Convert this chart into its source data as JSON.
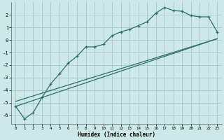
{
  "xlabel": "Humidex (Indice chaleur)",
  "bg_color": "#cce8e8",
  "grid_color": "#aacccc",
  "line_color": "#2e6e65",
  "xlim": [
    -0.5,
    23.5
  ],
  "ylim": [
    -6.7,
    3.0
  ],
  "yticks": [
    -6,
    -5,
    -4,
    -3,
    -2,
    -1,
    0,
    1,
    2
  ],
  "xticks": [
    0,
    1,
    2,
    3,
    4,
    5,
    6,
    7,
    8,
    9,
    10,
    11,
    12,
    13,
    14,
    15,
    16,
    17,
    18,
    19,
    20,
    21,
    22,
    23
  ],
  "line1_x": [
    0,
    1,
    2,
    3,
    4,
    5,
    6,
    7,
    8,
    9,
    10,
    11,
    12,
    13,
    14,
    15,
    16,
    17,
    18,
    19,
    20,
    21,
    22,
    23
  ],
  "line1_y": [
    -5.3,
    -6.3,
    -5.8,
    -4.6,
    -3.5,
    -2.7,
    -1.85,
    -1.3,
    -0.55,
    -0.55,
    -0.35,
    0.35,
    0.65,
    0.85,
    1.15,
    1.45,
    2.15,
    2.6,
    2.35,
    2.3,
    1.95,
    1.85,
    1.85,
    0.65
  ],
  "line2_x": [
    0,
    23
  ],
  "line2_y": [
    -5.3,
    0.1
  ],
  "line3_x": [
    0,
    23
  ],
  "line3_y": [
    -4.9,
    0.1
  ]
}
